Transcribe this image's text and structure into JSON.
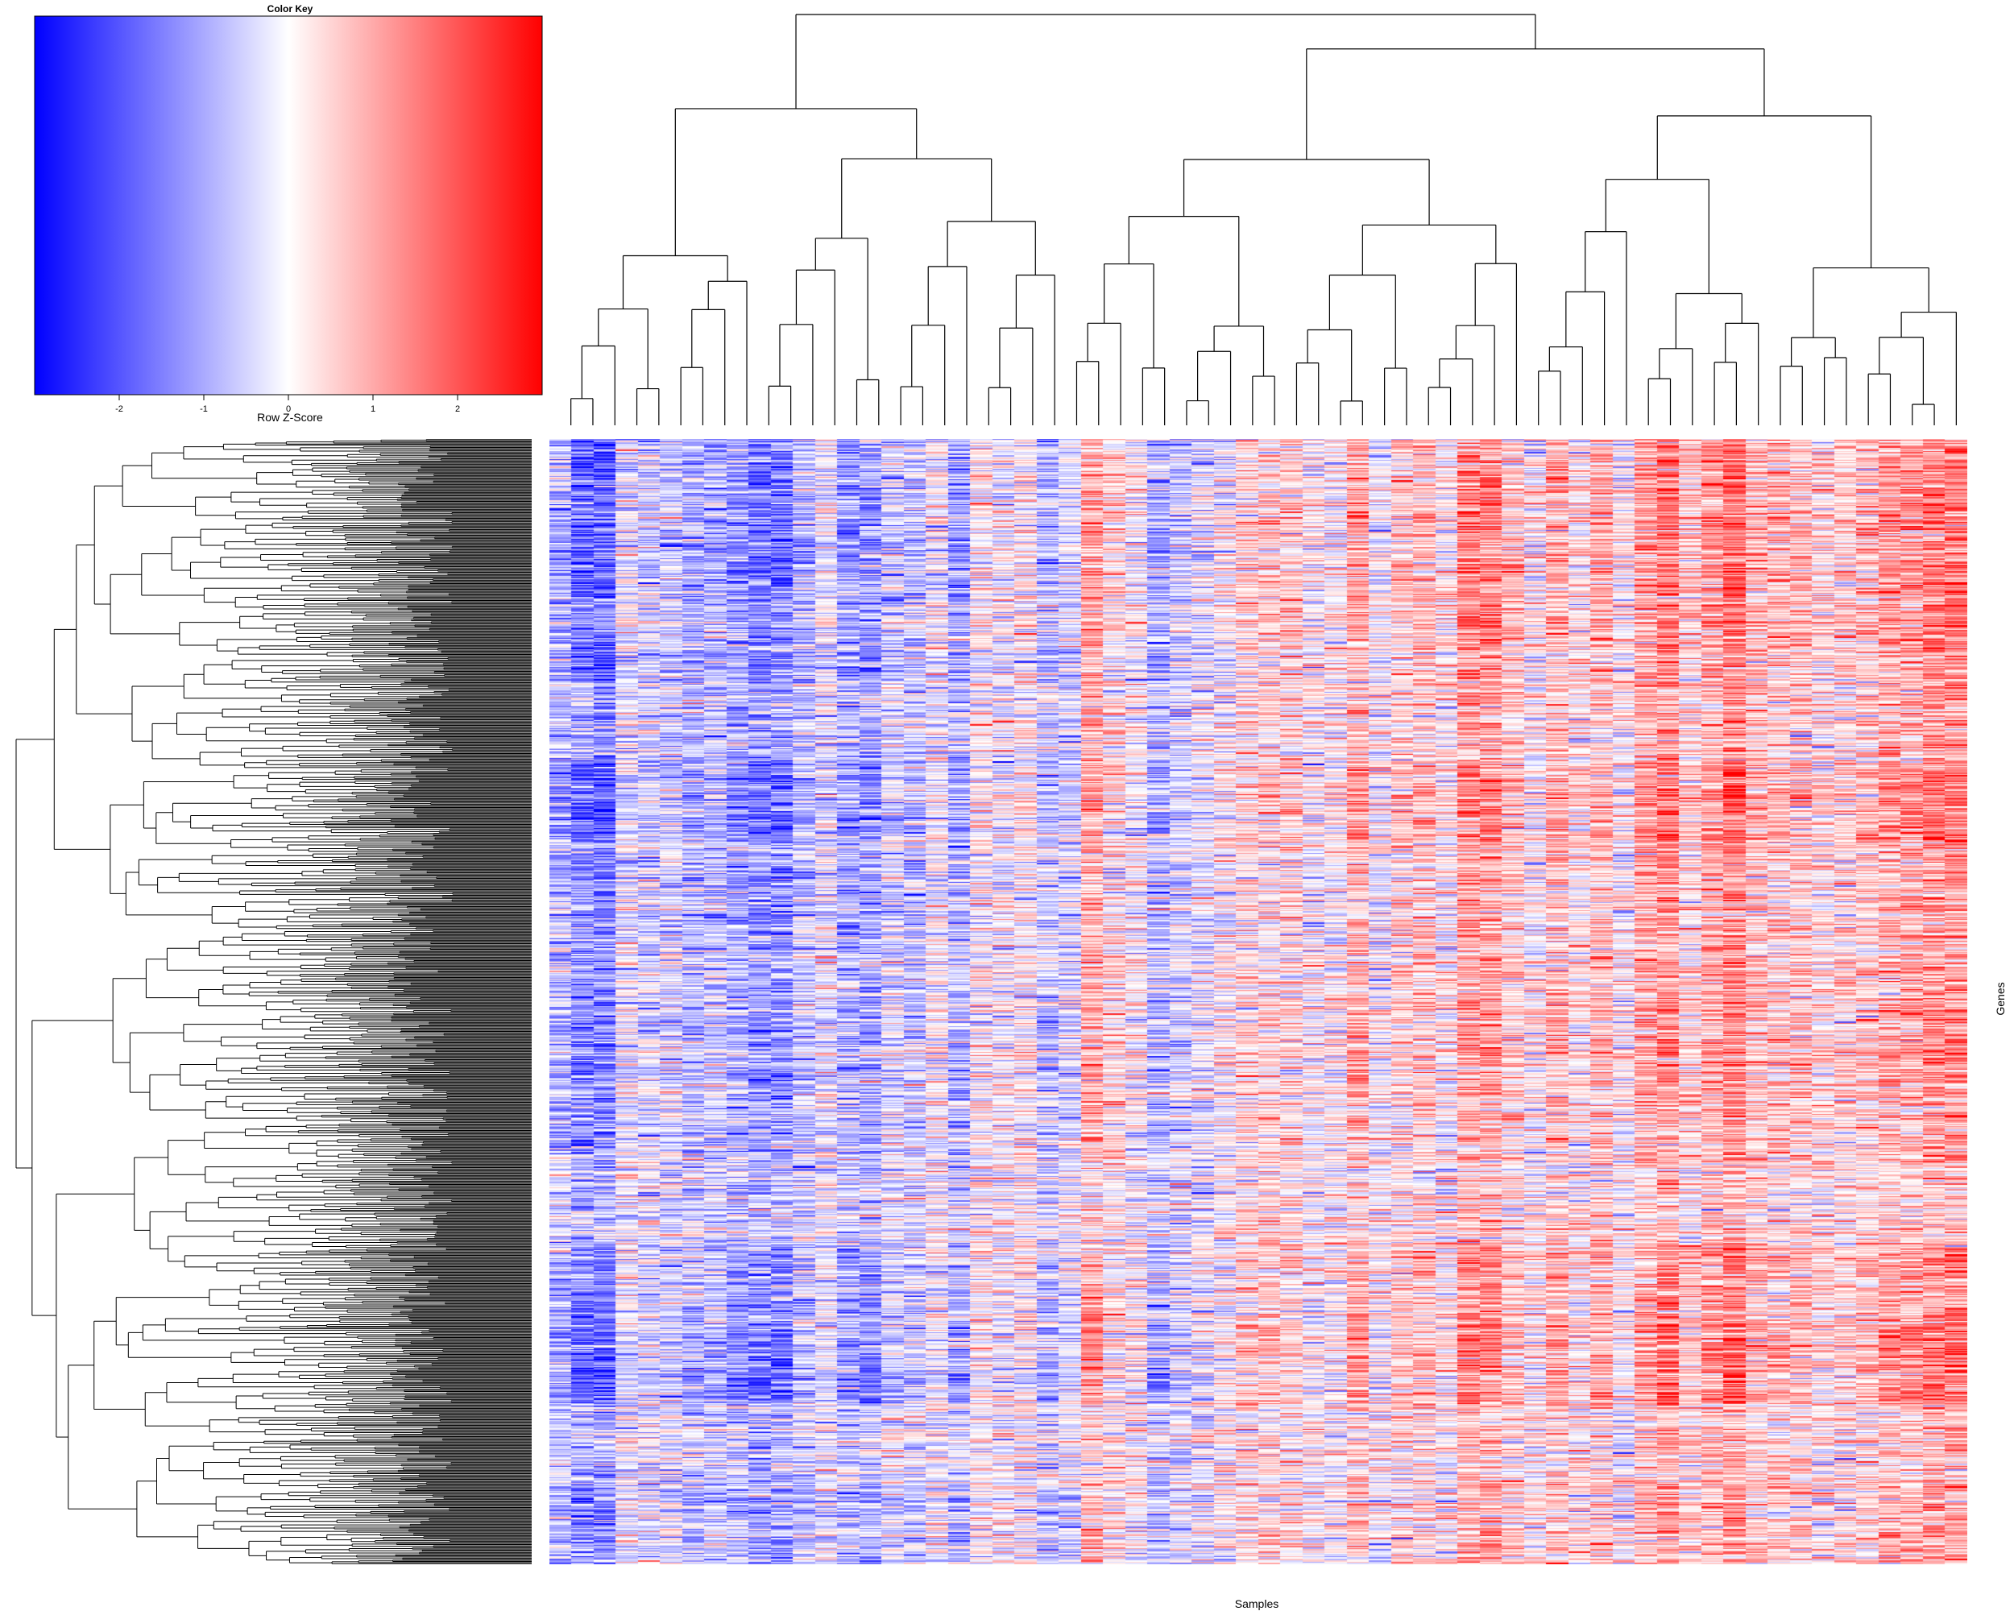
{
  "chart_data": {
    "type": "heatmap",
    "title": "",
    "xlabel": "Samples",
    "ylabel": "Genes",
    "n_samples": 64,
    "n_genes": 1000,
    "color_key": {
      "title": "Color Key",
      "label": "Row Z-Score",
      "range": [
        -3,
        3
      ],
      "ticks": [
        -2,
        -1,
        0,
        1,
        2
      ],
      "colors": {
        "low": "#0000ff",
        "mid": "#ffffff",
        "high": "#ff0000"
      }
    },
    "column_dendrogram": true,
    "row_dendrogram": true,
    "pattern": "left sample clusters mostly blue (low z-score), right sample clusters mostly red (high z-score)"
  }
}
